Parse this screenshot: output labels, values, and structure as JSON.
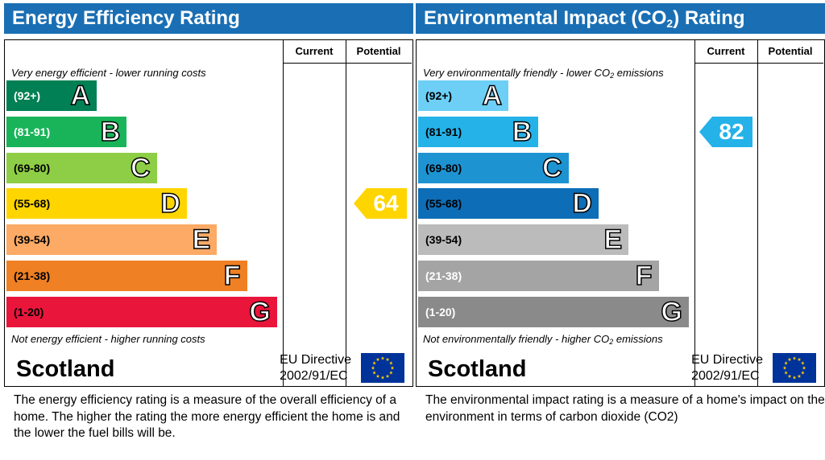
{
  "panels": [
    {
      "title": "Energy Efficiency Rating",
      "col_current": "Current",
      "col_potential": "Potential",
      "top_note": "Very energy efficient - lower running costs",
      "bottom_note": "Not energy efficient - higher running costs",
      "country": "Scotland",
      "directive_line1": "EU Directive",
      "directive_line2": "2002/91/EC",
      "description": "The energy efficiency rating is a measure of the overall efficiency of a home.  The higher the rating the more energy efficient the home is and the lower the fuel bills will be."
    },
    {
      "title_pre": "Environmental Impact (CO",
      "title_sub": "2",
      "title_post": ") Rating",
      "col_current": "Current",
      "col_potential": "Potential",
      "top_note_pre": "Very environmentally friendly - lower CO",
      "top_note_sub": "2",
      "top_note_post": " emissions",
      "bottom_note_pre": "Not environmentally friendly - higher CO",
      "bottom_note_sub": "2",
      "bottom_note_post": " emissions",
      "country": "Scotland",
      "directive_line1": "EU Directive",
      "directive_line2": "2002/91/EC",
      "description": "The environmental impact rating is a measure of a home's impact on the environment in terms of carbon dioxide (CO2)"
    }
  ],
  "chart_data": [
    {
      "type": "bar",
      "title": "Energy Efficiency Rating",
      "categories": [
        "A",
        "B",
        "C",
        "D",
        "E",
        "F",
        "G"
      ],
      "ranges": [
        "(92+)",
        "(81-91)",
        "(69-80)",
        "(55-68)",
        "(39-54)",
        "(21-38)",
        "(1-20)"
      ],
      "colors": [
        "#008054",
        "#19b459",
        "#8dce46",
        "#ffd500",
        "#fcaa65",
        "#ef8023",
        "#e9153b"
      ],
      "text_colors": [
        "#ffffff",
        "#ffffff",
        "#000000",
        "#000000",
        "#000000",
        "#000000",
        "#000000"
      ],
      "current": null,
      "potential": 64,
      "potential_band": "D",
      "potential_color": "#ffd500"
    },
    {
      "type": "bar",
      "title": "Environmental Impact (CO2) Rating",
      "categories": [
        "A",
        "B",
        "C",
        "D",
        "E",
        "F",
        "G"
      ],
      "ranges": [
        "(92+)",
        "(81-91)",
        "(69-80)",
        "(55-68)",
        "(39-54)",
        "(21-38)",
        "(1-20)"
      ],
      "colors": [
        "#6dcff6",
        "#24b2e9",
        "#1d93d2",
        "#0d6db6",
        "#bbbbbb",
        "#a4a4a4",
        "#8a8a8a"
      ],
      "text_colors": [
        "#000000",
        "#000000",
        "#000000",
        "#000000",
        "#000000",
        "#ffffff",
        "#ffffff"
      ],
      "current": 82,
      "current_band": "B",
      "current_color": "#24b2e9",
      "potential": null
    }
  ]
}
